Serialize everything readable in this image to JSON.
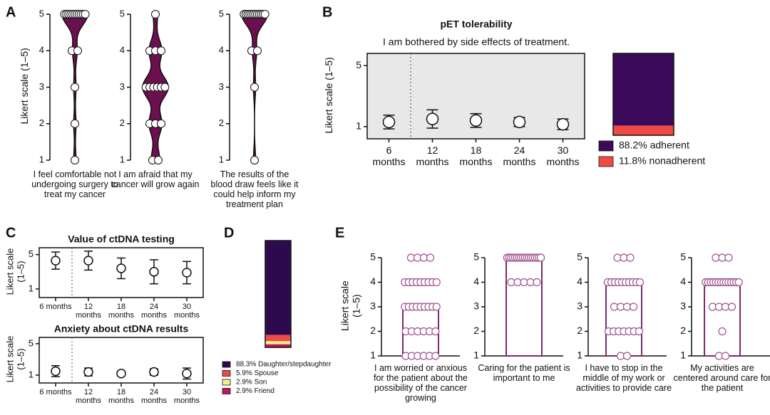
{
  "chart_data": [
    {
      "type": "violin",
      "panel": "A",
      "ylabel": "Likert scale (1–5)",
      "ylim": [
        1,
        5
      ],
      "yticks": [
        1,
        2,
        3,
        4,
        5
      ],
      "color": "#6b0f4f",
      "categories": [
        "I feel comfortable not undergoing surgery to treat my cancer",
        "I am afraid that my cancer will grow again",
        "The results of the blood draw feels like it could help inform my treatment plan"
      ],
      "values": [
        [
          5,
          5,
          5,
          5,
          5,
          5,
          5,
          5,
          5,
          5,
          5,
          4,
          4,
          3,
          2,
          1
        ],
        [
          5,
          4,
          4,
          4,
          3,
          3,
          3,
          3,
          3,
          3,
          2,
          2,
          2,
          1,
          1
        ],
        [
          5,
          5,
          5,
          5,
          5,
          5,
          5,
          5,
          5,
          5,
          5,
          5,
          4,
          4,
          3,
          1
        ]
      ]
    },
    {
      "type": "errorbar",
      "panel": "B",
      "title": "pET tolerability",
      "subtitle": "I am bothered by side effects of treatment.",
      "ylabel": "Likert scale (1–5)",
      "categories": [
        "6 months",
        "12 months",
        "18 months",
        "24 months",
        "30 months"
      ],
      "values": [
        1.3,
        1.5,
        1.4,
        1.3,
        1.15
      ],
      "errors": [
        0.45,
        0.6,
        0.45,
        0.3,
        0.35
      ],
      "ylim": [
        0.2,
        5.8
      ],
      "yticks": [
        1,
        5
      ],
      "background": "#e8e8e8"
    },
    {
      "type": "stacked-bar",
      "series": [
        {
          "name": "88.2% adherent",
          "color": "#3b0a5a",
          "values": [
            88.2
          ]
        },
        {
          "name": "11.8% nonadherent",
          "color": "#f04a45",
          "values": [
            11.8
          ]
        }
      ]
    },
    {
      "type": "errorbar",
      "panel": "C",
      "title": "Value of ctDNA testing",
      "ylabel": "Likert scale (1–5)",
      "categories": [
        "6 months",
        "12 months",
        "18 months",
        "24 months",
        "30 months"
      ],
      "values": [
        4.3,
        4.3,
        3.4,
        3.0,
        2.9
      ],
      "errors": [
        1.0,
        1.1,
        1.2,
        1.4,
        1.3
      ],
      "ylim": [
        0,
        5.8
      ],
      "yticks": [
        1,
        5
      ]
    },
    {
      "type": "errorbar",
      "title": "Anxiety about ctDNA results",
      "ylabel": "Likert scale (1–5)",
      "categories": [
        "6 months",
        "12 months",
        "18 months",
        "24 months",
        "30 months"
      ],
      "values": [
        1.5,
        1.4,
        1.2,
        1.4,
        1.2
      ],
      "errors": [
        0.7,
        0.5,
        0.3,
        0.4,
        0.7
      ],
      "ylim": [
        0,
        5.8
      ],
      "yticks": [
        1,
        5
      ]
    },
    {
      "type": "stacked-bar",
      "panel": "D",
      "series": [
        {
          "name": "88.3% Daughter/stepdaughter",
          "color": "#2d0a4e",
          "values": [
            88.3
          ]
        },
        {
          "name": "5.9% Spouse",
          "color": "#f04a45",
          "values": [
            5.9
          ]
        },
        {
          "name": "2.9% Son",
          "color": "#f5f08a",
          "values": [
            2.9
          ]
        },
        {
          "name": "2.9% Friend",
          "color": "#c2185b",
          "values": [
            2.9
          ]
        }
      ]
    },
    {
      "type": "bar-points",
      "panel": "E",
      "ylabel": "Likert scale (1–5)",
      "ylim": [
        1,
        5
      ],
      "yticks": [
        1,
        2,
        3,
        4,
        5
      ],
      "color": "#7b2a6e",
      "categories": [
        "I am worried or anxious for the patient about the possibility of the cancer growing",
        "Caring for the patient is important to me",
        "I have to stop in the middle of my work or activities to provide care",
        "My activities are centered around care for the patient"
      ],
      "values": [
        3,
        5,
        4,
        4
      ],
      "points": [
        [
          5,
          5,
          5,
          5,
          4,
          4,
          4,
          4,
          4,
          4,
          4,
          4,
          4,
          3,
          3,
          3,
          3,
          3,
          3,
          3,
          3,
          3,
          2,
          2,
          2,
          2,
          2,
          2,
          1,
          1,
          1,
          1,
          1,
          1
        ],
        [
          5,
          5,
          5,
          5,
          5,
          5,
          5,
          5,
          5,
          5,
          5,
          5,
          5,
          5,
          5,
          5,
          5,
          5,
          4,
          4,
          4,
          4,
          4
        ],
        [
          5,
          5,
          5,
          4,
          4,
          4,
          4,
          4,
          4,
          4,
          4,
          4,
          4,
          3,
          3,
          3,
          3,
          2,
          2,
          2,
          2,
          2,
          2,
          2,
          1,
          1
        ],
        [
          5,
          5,
          5,
          4,
          4,
          4,
          4,
          4,
          4,
          4,
          4,
          4,
          4,
          4,
          4,
          4,
          4,
          3,
          3,
          3,
          3,
          2,
          1,
          1
        ]
      ]
    }
  ]
}
